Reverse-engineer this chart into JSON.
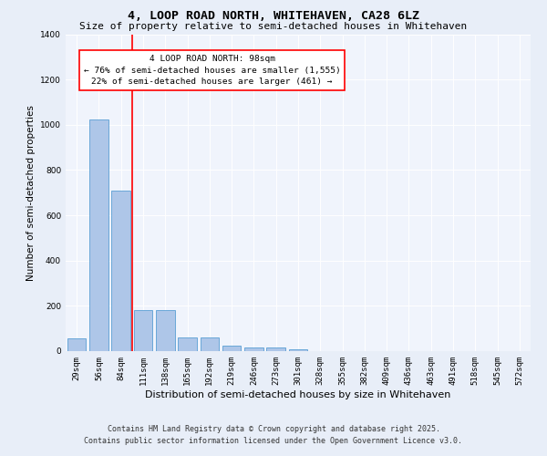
{
  "title": "4, LOOP ROAD NORTH, WHITEHAVEN, CA28 6LZ",
  "subtitle": "Size of property relative to semi-detached houses in Whitehaven",
  "xlabel": "Distribution of semi-detached houses by size in Whitehaven",
  "ylabel": "Number of semi-detached properties",
  "categories": [
    "29sqm",
    "56sqm",
    "84sqm",
    "111sqm",
    "138sqm",
    "165sqm",
    "192sqm",
    "219sqm",
    "246sqm",
    "273sqm",
    "301sqm",
    "328sqm",
    "355sqm",
    "382sqm",
    "409sqm",
    "436sqm",
    "463sqm",
    "491sqm",
    "518sqm",
    "545sqm",
    "572sqm"
  ],
  "values": [
    55,
    1025,
    710,
    182,
    182,
    62,
    62,
    25,
    15,
    15,
    10,
    0,
    0,
    0,
    0,
    0,
    0,
    0,
    0,
    0,
    0
  ],
  "bar_color": "#aec6e8",
  "bar_edge_color": "#5a9fd4",
  "red_line_x": 2.5,
  "annotation_line1": "4 LOOP ROAD NORTH: 98sqm",
  "annotation_line2": "← 76% of semi-detached houses are smaller (1,555)",
  "annotation_line3": "22% of semi-detached houses are larger (461) →",
  "annotation_box_color": "white",
  "annotation_box_edge_color": "red",
  "ylim": [
    0,
    1400
  ],
  "yticks": [
    0,
    200,
    400,
    600,
    800,
    1000,
    1200,
    1400
  ],
  "bg_color": "#e8eef8",
  "plot_bg_color": "#f0f4fc",
  "footer_line1": "Contains HM Land Registry data © Crown copyright and database right 2025.",
  "footer_line2": "Contains public sector information licensed under the Open Government Licence v3.0.",
  "title_fontsize": 9.5,
  "subtitle_fontsize": 8.0,
  "xlabel_fontsize": 8.0,
  "ylabel_fontsize": 7.5,
  "tick_fontsize": 6.5,
  "annotation_fontsize": 6.8,
  "footer_fontsize": 6.0
}
